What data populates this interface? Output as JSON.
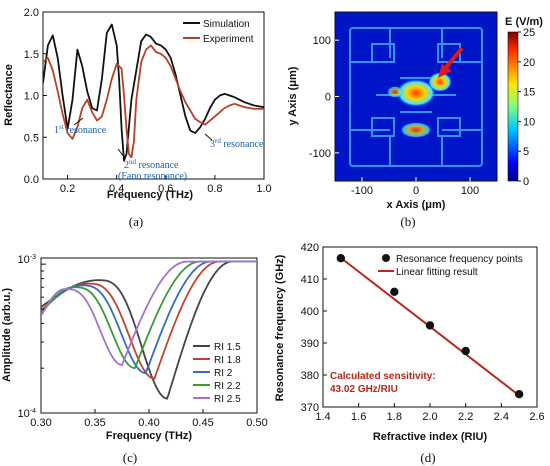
{
  "colors": {
    "black": "#111111",
    "red": "#b8402a",
    "blue": "#1a5fa8",
    "fit": "#b8261b"
  },
  "chart_data": [
    {
      "type": "line",
      "panel": "(a)",
      "xlabel": "Frequency (THz)",
      "ylabel": "Reflectance",
      "xlim": [
        0.1,
        1.0
      ],
      "ylim": [
        0.0,
        2.0
      ],
      "xticks": [
        "0.2",
        "0.4",
        "0.6",
        "0.8",
        "1.0"
      ],
      "yticks": [
        "0.0",
        "0.5",
        "1.0",
        "1.5",
        "2.0"
      ],
      "legend_position": "top-right",
      "series": [
        {
          "name": "Simulation",
          "color": "#111111",
          "x": [
            0.1,
            0.12,
            0.14,
            0.16,
            0.18,
            0.2,
            0.22,
            0.24,
            0.26,
            0.28,
            0.3,
            0.32,
            0.34,
            0.36,
            0.38,
            0.4,
            0.41,
            0.42,
            0.43,
            0.44,
            0.46,
            0.48,
            0.5,
            0.52,
            0.54,
            0.56,
            0.58,
            0.6,
            0.62,
            0.64,
            0.66,
            0.68,
            0.7,
            0.72,
            0.74,
            0.76,
            0.78,
            0.8,
            0.82,
            0.84,
            0.86,
            0.88,
            0.9,
            0.92,
            0.94,
            0.96,
            0.98,
            1.0
          ],
          "y": [
            1.15,
            1.6,
            1.72,
            1.45,
            1.0,
            0.6,
            0.95,
            1.55,
            1.35,
            1.05,
            0.85,
            0.82,
            1.2,
            1.75,
            1.85,
            1.6,
            1.2,
            0.6,
            0.22,
            0.3,
            0.95,
            1.3,
            1.65,
            1.73,
            1.7,
            1.62,
            1.6,
            1.55,
            1.45,
            1.25,
            1.0,
            0.75,
            0.58,
            0.55,
            0.62,
            0.72,
            0.85,
            0.95,
            1.0,
            1.02,
            1.0,
            0.98,
            0.95,
            0.92,
            0.9,
            0.88,
            0.87,
            0.86
          ]
        },
        {
          "name": "Experiment",
          "color": "#b8402a",
          "x": [
            0.1,
            0.12,
            0.14,
            0.16,
            0.18,
            0.2,
            0.22,
            0.24,
            0.26,
            0.28,
            0.3,
            0.32,
            0.34,
            0.36,
            0.38,
            0.4,
            0.42,
            0.43,
            0.44,
            0.45,
            0.46,
            0.47,
            0.48,
            0.5,
            0.52,
            0.54,
            0.56,
            0.58,
            0.6,
            0.62,
            0.64,
            0.66,
            0.68,
            0.7,
            0.72,
            0.74,
            0.76,
            0.78,
            0.8,
            0.82,
            0.84,
            0.86,
            0.88,
            0.9,
            0.92,
            0.94,
            0.96,
            0.98,
            1.0
          ],
          "y": [
            1.4,
            1.45,
            1.3,
            1.05,
            0.78,
            0.55,
            0.48,
            0.62,
            0.85,
            0.95,
            0.8,
            0.7,
            0.75,
            0.95,
            1.2,
            1.38,
            1.32,
            1.0,
            0.6,
            0.3,
            0.26,
            0.45,
            0.95,
            1.4,
            1.55,
            1.6,
            1.52,
            1.5,
            1.45,
            1.35,
            1.2,
            1.05,
            0.92,
            0.82,
            0.72,
            0.68,
            0.65,
            0.7,
            0.75,
            0.8,
            0.85,
            0.88,
            0.9,
            0.88,
            0.86,
            0.85,
            0.84,
            0.84,
            0.84
          ]
        }
      ],
      "annotations": [
        "1st resonance",
        "2nd resonance",
        "(Fano resonance)",
        "3rd resonance"
      ]
    },
    {
      "type": "heatmap",
      "panel": "(b)",
      "xlabel": "x Axis (μm)",
      "ylabel": "y Axis (μm)",
      "xlim": [
        -150,
        150
      ],
      "ylim": [
        -150,
        150
      ],
      "xticks": [
        "-100",
        "0",
        "100"
      ],
      "yticks": [
        "100",
        "0",
        "-100"
      ],
      "colorbar_title": "E (V/m)",
      "colorbar_ticks": [
        "25",
        "20",
        "15",
        "10",
        "5",
        "0"
      ],
      "colorbar_range": [
        0,
        25
      ]
    },
    {
      "type": "line",
      "panel": "(c)",
      "xlabel": "Frequency (THz)",
      "ylabel": "Amplitude (arb.u.)",
      "xlim": [
        0.3,
        0.5
      ],
      "yscale": "log",
      "ylim": [
        0.0001,
        0.0011
      ],
      "xticks": [
        "0.30",
        "0.35",
        "0.40",
        "0.45",
        "0.50"
      ],
      "yticks": [
        "10⁻³",
        "10⁻⁴"
      ],
      "legend_position": "lower-right",
      "series": [
        {
          "name": "RI 1.5",
          "color": "#444444",
          "peak_x": 0.353,
          "peak_y": 0.00078,
          "dip_x": 0.417,
          "dip_y": 0.000125
        },
        {
          "name": "RI 1.8",
          "color": "#c0432f",
          "peak_x": 0.343,
          "peak_y": 0.00074,
          "dip_x": 0.405,
          "dip_y": 0.00017
        },
        {
          "name": "RI 2",
          "color": "#2f6ec0",
          "peak_x": 0.337,
          "peak_y": 0.00072,
          "dip_x": 0.397,
          "dip_y": 0.000185
        },
        {
          "name": "RI 2.2",
          "color": "#3a9a3a",
          "peak_x": 0.33,
          "peak_y": 0.0007,
          "dip_x": 0.387,
          "dip_y": 0.0002
        },
        {
          "name": "RI 2.5",
          "color": "#a073d0",
          "peak_x": 0.322,
          "peak_y": 0.00068,
          "dip_x": 0.375,
          "dip_y": 0.00021
        }
      ]
    },
    {
      "type": "scatter",
      "panel": "(d)",
      "xlabel": "Refractive index (RIU)",
      "ylabel": "Resonance frequency (GHz)",
      "xlim": [
        1.4,
        2.6
      ],
      "ylim": [
        370,
        420
      ],
      "xticks": [
        "1.4",
        "1.6",
        "1.8",
        "2.0",
        "2.2",
        "2.4",
        "2.6"
      ],
      "yticks": [
        "370",
        "380",
        "390",
        "400",
        "410",
        "420"
      ],
      "legend_position": "top-right",
      "series": [
        {
          "name": "Resonance frequency points",
          "x": [
            1.5,
            1.8,
            2.0,
            2.2,
            2.5
          ],
          "y": [
            416.5,
            406.0,
            395.5,
            387.5,
            374.0
          ]
        },
        {
          "name": "Linear fitting result",
          "x": [
            1.5,
            2.5
          ],
          "y": [
            416.6,
            373.6
          ]
        }
      ],
      "annotation": [
        "Calculated sensitivity:",
        "43.02 GHz/RIU"
      ]
    }
  ],
  "labels": {
    "a": {
      "xlabel": "Frequency (THz)",
      "ylabel": "Reflectance",
      "leg1": "Simulation",
      "leg2": "Experiment",
      "cap": "(a)",
      "ann1a": "1",
      "ann1b": "st",
      "ann1c": " resonance",
      "ann2a": "2",
      "ann2b": "nd",
      "ann2c": " resonance",
      "ann2d": "(Fano resonance)",
      "ann3a": "3",
      "ann3b": "rd",
      "ann3c": " resonance",
      "xt": [
        "0.2",
        "0.4",
        "0.6",
        "0.8",
        "1.0"
      ],
      "yt": [
        "0.0",
        "0.5",
        "1.0",
        "1.5",
        "2.0"
      ]
    },
    "b": {
      "xlabel": "x Axis (μm)",
      "ylabel": "y Axis (μm)",
      "cb": "E (V/m)",
      "cap": "(b)",
      "xt": [
        "-100",
        "0",
        "100"
      ],
      "yt": [
        "100",
        "0",
        "-100"
      ],
      "cbt": [
        "25",
        "20",
        "15",
        "10",
        "5",
        "0"
      ]
    },
    "c": {
      "xlabel": "Frequency (THz)",
      "ylabel": "Amplitude (arb.u.)",
      "cap": "(c)",
      "xt": [
        "0.30",
        "0.35",
        "0.40",
        "0.45",
        "0.50"
      ],
      "yt_top": "10",
      "yt_top_exp": "-3",
      "yt_bot": "10",
      "yt_bot_exp": "-4"
    },
    "d": {
      "xlabel": "Refractive index (RIU)",
      "ylabel": "Resonance frequency (GHz)",
      "cap": "(d)",
      "leg1": "Resonance frequency points",
      "leg2": "Linear fitting result",
      "ann1": "Calculated sensitivity:",
      "ann2": "43.02 GHz/RIU",
      "xt": [
        "1.4",
        "1.6",
        "1.8",
        "2.0",
        "2.2",
        "2.4",
        "2.6"
      ],
      "yt": [
        "370",
        "380",
        "390",
        "400",
        "410",
        "420"
      ]
    }
  }
}
